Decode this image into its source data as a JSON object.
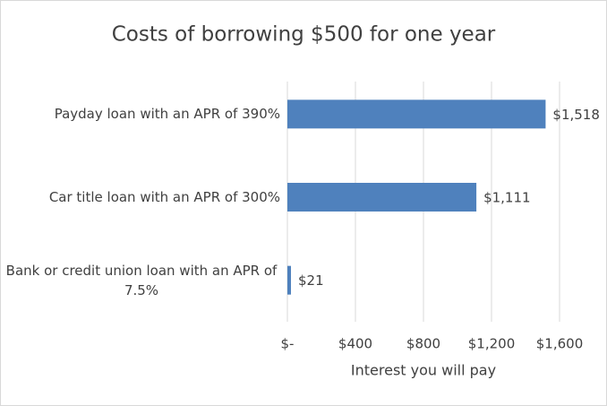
{
  "chart_data": {
    "type": "hbar",
    "title": "Costs of borrowing $500 for one year",
    "categories": [
      "Payday loan with an APR of 390%",
      "Car title loan with an APR of 300%",
      "Bank or credit union loan with an APR of 7.5%"
    ],
    "values": [
      1518,
      1111,
      21
    ],
    "value_labels": [
      "$1,518",
      "$1,111",
      "$21"
    ],
    "color": "#4f81bd",
    "xlabel": "Interest you will pay",
    "xlim": [
      0,
      1600
    ],
    "xticks": [
      {
        "value": 0,
        "label": "$-"
      },
      {
        "value": 400,
        "label": "$400"
      },
      {
        "value": 800,
        "label": "$800"
      },
      {
        "value": 1200,
        "label": "$1,200"
      },
      {
        "value": 1600,
        "label": "$1,600"
      }
    ],
    "grid": true
  }
}
